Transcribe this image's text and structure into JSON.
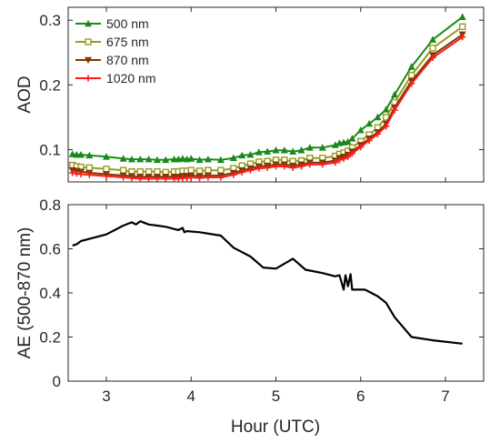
{
  "chart_data": [
    {
      "type": "line",
      "ylabel": "AOD",
      "xlabel": "",
      "xlim": [
        2.55,
        7.45
      ],
      "ylim": [
        0.05,
        0.32
      ],
      "xticks": [
        3,
        4,
        5,
        6,
        7
      ],
      "yticks": [
        0.1,
        0.2,
        0.3
      ],
      "ytick_labels": [
        "0.1",
        "0.2",
        "0.3"
      ],
      "legend_position": "top-left",
      "x": [
        2.6,
        2.65,
        2.7,
        2.8,
        3.0,
        3.2,
        3.3,
        3.4,
        3.5,
        3.6,
        3.7,
        3.8,
        3.85,
        3.9,
        3.95,
        4.0,
        4.1,
        4.2,
        4.35,
        4.5,
        4.6,
        4.7,
        4.8,
        4.9,
        5.0,
        5.1,
        5.2,
        5.3,
        5.4,
        5.55,
        5.7,
        5.75,
        5.8,
        5.85,
        5.9,
        6.0,
        6.1,
        6.2,
        6.3,
        6.4,
        6.6,
        6.85,
        7.2
      ],
      "series": [
        {
          "name": "500 nm",
          "color": "#1a8a1a",
          "marker": "triangle",
          "values": [
            0.093,
            0.092,
            0.092,
            0.091,
            0.089,
            0.086,
            0.085,
            0.085,
            0.085,
            0.084,
            0.084,
            0.085,
            0.085,
            0.086,
            0.085,
            0.086,
            0.084,
            0.085,
            0.084,
            0.087,
            0.091,
            0.092,
            0.096,
            0.097,
            0.099,
            0.099,
            0.097,
            0.099,
            0.103,
            0.103,
            0.107,
            0.11,
            0.111,
            0.112,
            0.117,
            0.13,
            0.14,
            0.15,
            0.162,
            0.185,
            0.228,
            0.27,
            0.305
          ]
        },
        {
          "name": "675 nm",
          "color": "#9a9a1e",
          "marker": "square",
          "values": [
            0.076,
            0.074,
            0.073,
            0.072,
            0.07,
            0.068,
            0.066,
            0.066,
            0.066,
            0.066,
            0.065,
            0.066,
            0.066,
            0.067,
            0.067,
            0.068,
            0.067,
            0.068,
            0.068,
            0.071,
            0.075,
            0.078,
            0.081,
            0.082,
            0.084,
            0.084,
            0.082,
            0.083,
            0.087,
            0.087,
            0.09,
            0.093,
            0.095,
            0.098,
            0.103,
            0.113,
            0.123,
            0.134,
            0.15,
            0.173,
            0.215,
            0.257,
            0.29
          ]
        },
        {
          "name": "870 nm",
          "color": "#7a3a00",
          "marker": "triangle-down",
          "values": [
            0.068,
            0.067,
            0.066,
            0.064,
            0.062,
            0.06,
            0.059,
            0.058,
            0.058,
            0.058,
            0.058,
            0.058,
            0.058,
            0.059,
            0.059,
            0.06,
            0.059,
            0.06,
            0.06,
            0.064,
            0.068,
            0.071,
            0.074,
            0.075,
            0.077,
            0.077,
            0.075,
            0.077,
            0.08,
            0.08,
            0.083,
            0.087,
            0.089,
            0.092,
            0.097,
            0.107,
            0.117,
            0.127,
            0.14,
            0.165,
            0.206,
            0.246,
            0.278
          ]
        },
        {
          "name": "1020 nm",
          "color": "#ff1a1a",
          "marker": "plus",
          "values": [
            0.064,
            0.063,
            0.062,
            0.061,
            0.059,
            0.057,
            0.056,
            0.055,
            0.055,
            0.055,
            0.055,
            0.055,
            0.055,
            0.056,
            0.056,
            0.057,
            0.056,
            0.057,
            0.057,
            0.061,
            0.065,
            0.068,
            0.071,
            0.072,
            0.074,
            0.074,
            0.072,
            0.074,
            0.077,
            0.077,
            0.08,
            0.084,
            0.086,
            0.089,
            0.094,
            0.104,
            0.114,
            0.124,
            0.136,
            0.161,
            0.202,
            0.242,
            0.274
          ]
        }
      ]
    },
    {
      "type": "line",
      "ylabel": "AE (500-870 nm)",
      "xlabel": "Hour (UTC)",
      "xlim": [
        2.55,
        7.45
      ],
      "ylim": [
        0,
        0.8
      ],
      "xticks": [
        3,
        4,
        5,
        6,
        7
      ],
      "yticks": [
        0,
        0.2,
        0.4,
        0.6,
        0.8
      ],
      "ytick_labels": [
        "0",
        "0.2",
        "0.4",
        "0.6",
        "0.8"
      ],
      "series": [
        {
          "color": "#000000",
          "x": [
            2.6,
            2.65,
            2.7,
            2.8,
            3.0,
            3.2,
            3.3,
            3.35,
            3.4,
            3.5,
            3.6,
            3.7,
            3.85,
            3.9,
            3.92,
            3.95,
            4.1,
            4.35,
            4.5,
            4.7,
            4.85,
            5.0,
            5.2,
            5.35,
            5.55,
            5.7,
            5.75,
            5.8,
            5.82,
            5.85,
            5.88,
            5.9,
            6.05,
            6.2,
            6.3,
            6.4,
            6.6,
            6.85,
            7.2
          ],
          "values": [
            0.615,
            0.62,
            0.635,
            0.645,
            0.665,
            0.705,
            0.72,
            0.71,
            0.725,
            0.71,
            0.705,
            0.7,
            0.685,
            0.695,
            0.675,
            0.68,
            0.675,
            0.66,
            0.605,
            0.565,
            0.515,
            0.51,
            0.555,
            0.505,
            0.49,
            0.475,
            0.48,
            0.415,
            0.48,
            0.43,
            0.485,
            0.415,
            0.415,
            0.385,
            0.355,
            0.29,
            0.2,
            0.185,
            0.17
          ]
        }
      ]
    }
  ]
}
